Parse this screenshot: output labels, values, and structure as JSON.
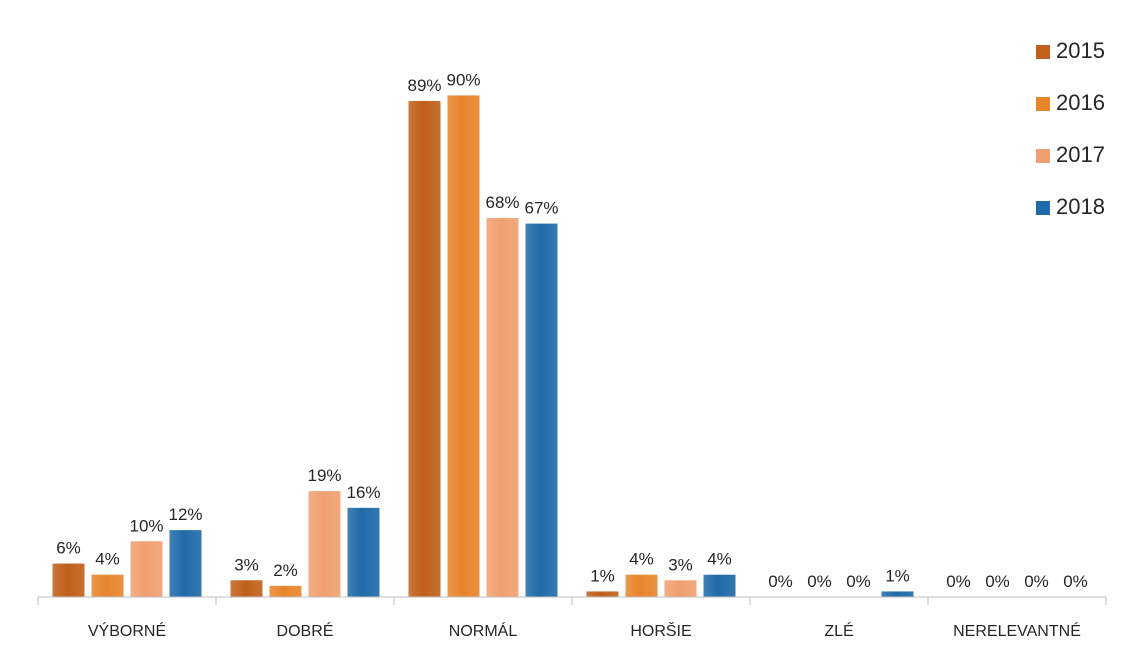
{
  "chart_data": {
    "type": "bar",
    "title": "",
    "xlabel": "",
    "ylabel": "",
    "ylim": [
      0,
      100
    ],
    "grid": false,
    "legend_position": "top-right",
    "categories": [
      "VÝBORNÉ",
      "DOBRÉ",
      "NORMÁL",
      "HORŠIE",
      "ZLÉ",
      "NERELEVANTNÉ"
    ],
    "series": [
      {
        "name": "2015",
        "color": "#c0601a",
        "values": [
          6,
          3,
          89,
          1,
          0,
          0
        ],
        "labels": [
          "6%",
          "3%",
          "89%",
          "1%",
          "0%",
          "0%"
        ]
      },
      {
        "name": "2016",
        "color": "#e8852c",
        "values": [
          4,
          2,
          90,
          4,
          0,
          0
        ],
        "labels": [
          "4%",
          "2%",
          "90%",
          "4%",
          "0%",
          "0%"
        ]
      },
      {
        "name": "2017",
        "color": "#f0a070",
        "values": [
          10,
          19,
          68,
          3,
          0,
          0
        ],
        "labels": [
          "10%",
          "19%",
          "68%",
          "3%",
          "0%",
          "0%"
        ]
      },
      {
        "name": "2018",
        "color": "#1f6aa8",
        "values": [
          12,
          16,
          67,
          4,
          1,
          0
        ],
        "labels": [
          "12%",
          "16%",
          "67%",
          "4%",
          "1%",
          "0%"
        ]
      }
    ]
  }
}
